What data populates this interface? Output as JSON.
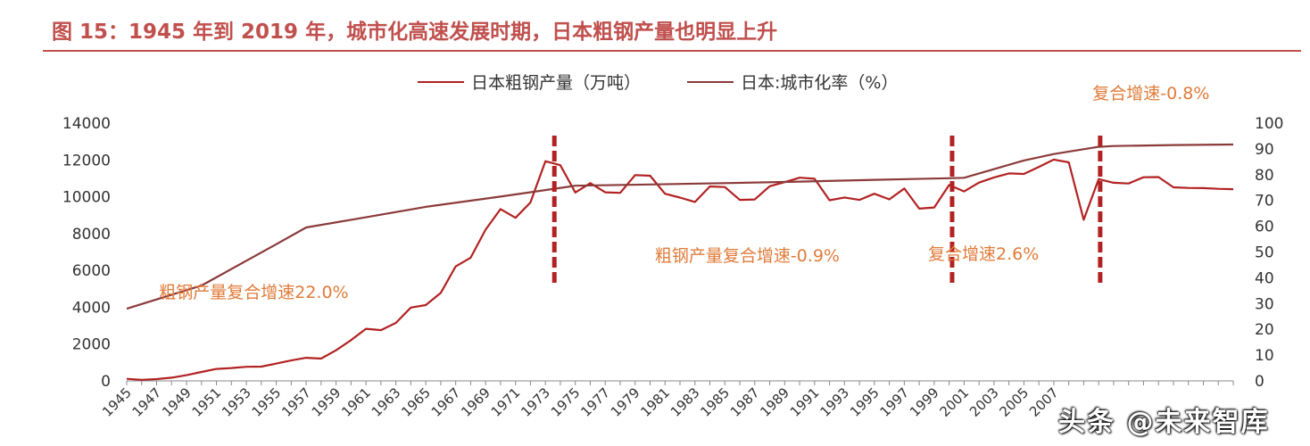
{
  "title": "图 15：1945 年到 2019 年，城市化高速发展时期，日本粗钢产量也明显上升",
  "legend": {
    "steel": "日本粗钢产量（万吨）",
    "urban": "日本:城市化率（%）"
  },
  "watermark": "头条 @未来智库",
  "colors": {
    "title": "#c0504d",
    "steel": "#b22222",
    "urban": "#8b3a3a",
    "annotation": "#e07b39",
    "marker": "#b22222",
    "axis": "#333333"
  },
  "chart_data": {
    "type": "line",
    "title": "图 15：1945 年到 2019 年，城市化高速发展时期，日本粗钢产量也明显上升",
    "x_tick_labels": [
      "1945",
      "1947",
      "1949",
      "1951",
      "1953",
      "1955",
      "1957",
      "1959",
      "1961",
      "1963",
      "1965",
      "1967",
      "1969",
      "1971",
      "1973",
      "1975",
      "1977",
      "1979",
      "1981",
      "1983",
      "1985",
      "1987",
      "1989",
      "1991",
      "1993",
      "1995",
      "1997",
      "1999",
      "2001",
      "2003",
      "2005",
      "2007"
    ],
    "y_left": {
      "label": "日本粗钢产量（万吨）",
      "lim": [
        0,
        14000
      ],
      "ticks": [
        0,
        2000,
        4000,
        6000,
        8000,
        10000,
        12000,
        14000
      ]
    },
    "y_right": {
      "label": "日本:城市化率（%）",
      "lim": [
        0,
        100
      ],
      "ticks": [
        0,
        10,
        20,
        30,
        40,
        50,
        60,
        70,
        80,
        90,
        100
      ]
    },
    "x_range": [
      1945,
      2019
    ],
    "series": [
      {
        "name": "日本粗钢产量（万吨）",
        "axis": "left",
        "x": [
          1945,
          1946,
          1947,
          1948,
          1949,
          1950,
          1951,
          1952,
          1953,
          1954,
          1955,
          1956,
          1957,
          1958,
          1959,
          1960,
          1961,
          1962,
          1963,
          1964,
          1965,
          1966,
          1967,
          1968,
          1969,
          1970,
          1971,
          1972,
          1973,
          1974,
          1975,
          1976,
          1977,
          1978,
          1979,
          1980,
          1981,
          1982,
          1983,
          1984,
          1985,
          1986,
          1987,
          1988,
          1989,
          1990,
          1991,
          1992,
          1993,
          1994,
          1995,
          1996,
          1997,
          1998,
          1999,
          2000,
          2001,
          2002,
          2003,
          2004,
          2005,
          2006,
          2007,
          2008,
          2009,
          2010,
          2011,
          2012,
          2013,
          2014,
          2015,
          2016,
          2017,
          2018,
          2019
        ],
        "values": [
          110,
          56,
          95,
          172,
          311,
          484,
          650,
          700,
          766,
          775,
          941,
          1111,
          1257,
          1212,
          1663,
          2214,
          2827,
          2755,
          3150,
          3980,
          4116,
          4778,
          6215,
          6689,
          8217,
          9332,
          8856,
          9690,
          11932,
          11713,
          10231,
          10740,
          10241,
          10211,
          11175,
          11140,
          10161,
          9955,
          9718,
          10559,
          10528,
          9828,
          9851,
          10568,
          10791,
          11034,
          10976,
          9810,
          9962,
          9830,
          10164,
          9860,
          10451,
          9355,
          9419,
          10640,
          10287,
          10770,
          11050,
          11270,
          11240,
          11620,
          12020,
          11870,
          8750,
          10960,
          10760,
          10720,
          11060,
          11070,
          10510,
          10480,
          10470,
          10430,
          10410
        ]
      },
      {
        "name": "日本:城市化率（%）",
        "axis": "right",
        "x": [
          1945,
          1950,
          1955,
          1957,
          1960,
          1965,
          1970,
          1975,
          1980,
          1985,
          1990,
          1995,
          2000,
          2001,
          2005,
          2007,
          2010,
          2011,
          2015,
          2019
        ],
        "values": [
          28,
          37,
          53,
          59.5,
          62.5,
          67.5,
          71.5,
          75.7,
          76.2,
          76.7,
          77.3,
          78,
          78.6,
          78.8,
          85.5,
          88,
          90.8,
          91.1,
          91.5,
          91.7
        ]
      }
    ],
    "vertical_markers": [
      1973.6,
      2000.2,
      2010.1
    ],
    "annotations": [
      {
        "text": "粗钢产量复合增速22.0%",
        "x": 1953.5,
        "y": 4500,
        "axis": "left"
      },
      {
        "text": "粗钢产量复合增速-0.9%",
        "x": 1986.5,
        "y": 6500,
        "axis": "left"
      },
      {
        "text": "复合增速2.6%",
        "x": 2002.3,
        "y": 6600,
        "axis": "left"
      },
      {
        "text": "复合增速-0.8%",
        "x": 2013.5,
        "y": 15300,
        "axis": "left"
      }
    ]
  }
}
